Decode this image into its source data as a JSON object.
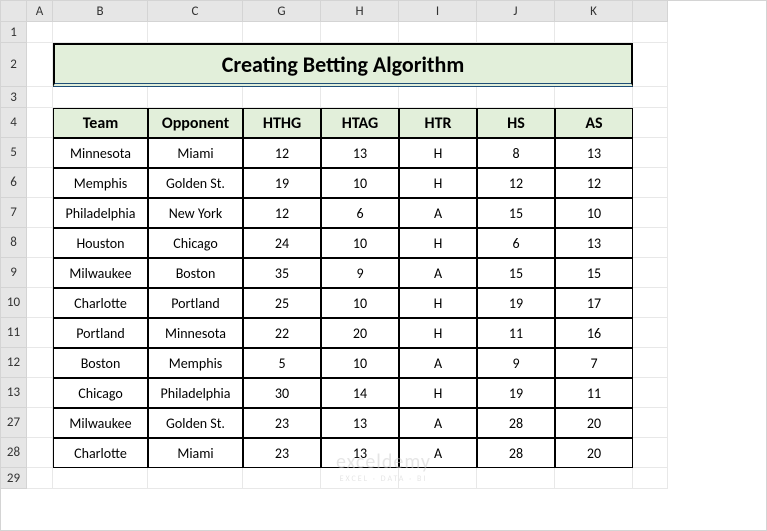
{
  "title": "Creating Betting Algorithm",
  "colHeaders": [
    "",
    "A",
    "B",
    "C",
    "G",
    "H",
    "I",
    "J",
    "K",
    ""
  ],
  "rowHeaders": [
    "1",
    "2",
    "3",
    "4",
    "5",
    "6",
    "7",
    "8",
    "9",
    "10",
    "11",
    "12",
    "13",
    "27",
    "28",
    "29"
  ],
  "tableHeaders": [
    "Team",
    "Opponent",
    "HTHG",
    "HTAG",
    "HTR",
    "HS",
    "AS"
  ],
  "rows": [
    [
      "Minnesota",
      "Miami",
      "12",
      "13",
      "H",
      "8",
      "13"
    ],
    [
      "Memphis",
      "Golden St.",
      "19",
      "10",
      "H",
      "12",
      "12"
    ],
    [
      "Philadelphia",
      "New York",
      "12",
      "6",
      "A",
      "15",
      "10"
    ],
    [
      "Houston",
      "Chicago",
      "24",
      "10",
      "H",
      "6",
      "13"
    ],
    [
      "Milwaukee",
      "Boston",
      "35",
      "9",
      "A",
      "15",
      "15"
    ],
    [
      "Charlotte",
      "Portland",
      "25",
      "10",
      "H",
      "19",
      "17"
    ],
    [
      "Portland",
      "Minnesota",
      "22",
      "20",
      "H",
      "11",
      "16"
    ],
    [
      "Boston",
      "Memphis",
      "5",
      "10",
      "A",
      "9",
      "7"
    ],
    [
      "Chicago",
      "Philadelphia",
      "30",
      "14",
      "H",
      "19",
      "11"
    ],
    [
      "Milwaukee",
      "Golden St.",
      "23",
      "13",
      "A",
      "28",
      "20"
    ],
    [
      "Charlotte",
      "Miami",
      "23",
      "13",
      "A",
      "28",
      "20"
    ]
  ],
  "watermark": "exceldemy",
  "watermark_sub": "EXCEL · DATA · BI",
  "colors": {
    "headerBg": "#e2efda",
    "titleBorder": "#1f4e78",
    "gridHeader": "#e6e6e6"
  }
}
